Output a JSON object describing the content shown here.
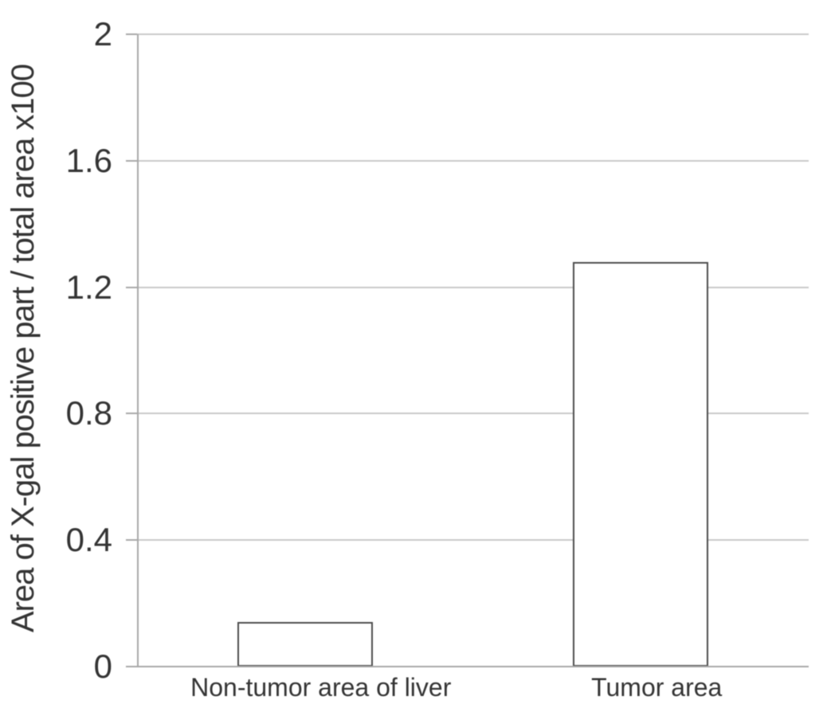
{
  "chart_data": {
    "type": "bar",
    "title": "",
    "xlabel": "",
    "ylabel": "Area of X-gal positive part / total area x100",
    "categories": [
      "Non-tumor area of liver",
      "Tumor area"
    ],
    "values": [
      0.14,
      1.28
    ],
    "ylim": [
      0,
      2
    ],
    "yticks": [
      0,
      0.4,
      0.8,
      1.2,
      1.6,
      2
    ],
    "ytick_labels": [
      "0",
      "0.4",
      "0.8",
      "1.2",
      "1.6",
      "2"
    ],
    "grid": true,
    "legend": false,
    "colors": {
      "bar_fill": "#ffffff",
      "bar_border": "#4d4d4d",
      "gridline": "#c9c9c9",
      "axis": "#a8a8a8",
      "text": "#343434",
      "background": "#ffffff"
    }
  }
}
